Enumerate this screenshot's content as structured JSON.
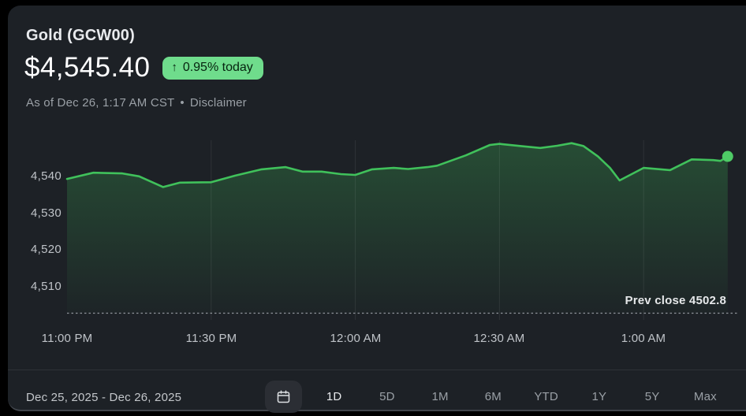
{
  "header": {
    "title": "Gold (GCW00)",
    "price": "$4,545.40",
    "change_badge": {
      "arrow": "↑",
      "text": "0.95% today"
    },
    "as_of": "As of Dec 26, 1:17 AM CST",
    "separator": "•",
    "disclaimer": "Disclaimer"
  },
  "chart_data": {
    "type": "area",
    "x_unit": "minutes after 11:00 PM",
    "x_range_minutes": [
      0,
      140
    ],
    "ylim": [
      4502.8,
      4551.5
    ],
    "grid": "vertical-only",
    "legend": "none",
    "x_ticks": [
      {
        "minutes": 0,
        "label": "11:00 PM"
      },
      {
        "minutes": 30,
        "label": "11:30 PM"
      },
      {
        "minutes": 60,
        "label": "12:00 AM"
      },
      {
        "minutes": 90,
        "label": "12:30 AM"
      },
      {
        "minutes": 120,
        "label": "1:00 AM"
      }
    ],
    "y_ticks": [
      {
        "value": 4540,
        "label": "4,540"
      },
      {
        "value": 4530,
        "label": "4,530"
      },
      {
        "value": 4520,
        "label": "4,520"
      },
      {
        "value": 4510,
        "label": "4,510"
      }
    ],
    "prev_close": {
      "label": "Prev close 4502.8",
      "value": 4502.8
    },
    "line_color": "#40c15b",
    "dot_color": "#4ecb66",
    "fill_top": "rgba(64,193,91,0.28)",
    "fill_bottom": "rgba(64,193,91,0.02)",
    "gridline_color": "rgba(255,255,255,0.08)",
    "points": [
      [
        0,
        4539.3
      ],
      [
        5.5,
        4541.0
      ],
      [
        11.5,
        4540.8
      ],
      [
        15,
        4540.0
      ],
      [
        20,
        4537.1
      ],
      [
        23.5,
        4538.3
      ],
      [
        30,
        4538.4
      ],
      [
        35,
        4540.2
      ],
      [
        40.5,
        4541.9
      ],
      [
        45.5,
        4542.5
      ],
      [
        49,
        4541.3
      ],
      [
        53,
        4541.3
      ],
      [
        57,
        4540.6
      ],
      [
        60,
        4540.4
      ],
      [
        63.5,
        4541.9
      ],
      [
        68,
        4542.3
      ],
      [
        71,
        4542.0
      ],
      [
        75,
        4542.5
      ],
      [
        77,
        4542.9
      ],
      [
        83,
        4545.7
      ],
      [
        88,
        4548.5
      ],
      [
        90,
        4548.8
      ],
      [
        94.5,
        4548.2
      ],
      [
        98.5,
        4547.7
      ],
      [
        102,
        4548.3
      ],
      [
        105,
        4549.0
      ],
      [
        107.5,
        4548.2
      ],
      [
        110.5,
        4545.4
      ],
      [
        113,
        4542.3
      ],
      [
        115,
        4538.9
      ],
      [
        120,
        4542.3
      ],
      [
        125.5,
        4541.7
      ],
      [
        130,
        4544.6
      ],
      [
        134.5,
        4544.4
      ],
      [
        136,
        4544.2
      ],
      [
        137.5,
        4545.4
      ]
    ]
  },
  "footer": {
    "date_range": "Dec 25, 2025 - Dec 26, 2025",
    "ranges": [
      {
        "label": "1D",
        "active": true
      },
      {
        "label": "5D",
        "active": false
      },
      {
        "label": "1M",
        "active": false
      },
      {
        "label": "6M",
        "active": false
      },
      {
        "label": "YTD",
        "active": false
      },
      {
        "label": "1Y",
        "active": false
      },
      {
        "label": "5Y",
        "active": false
      },
      {
        "label": "Max",
        "active": false
      }
    ]
  },
  "icons": {
    "calendar_button": "calendar-icon",
    "change_direction": "arrow-up-icon"
  },
  "colors": {
    "page_background": "#000000",
    "panel_background": "#1d2126",
    "badge_background": "#6fdc8c",
    "badge_text": "#06230f",
    "text_primary": "#e8eaed",
    "text_secondary": "#9aa0a6",
    "tick_label": "#bfc3c8",
    "divider": "#2d3137",
    "line_green": "#40c15b"
  }
}
